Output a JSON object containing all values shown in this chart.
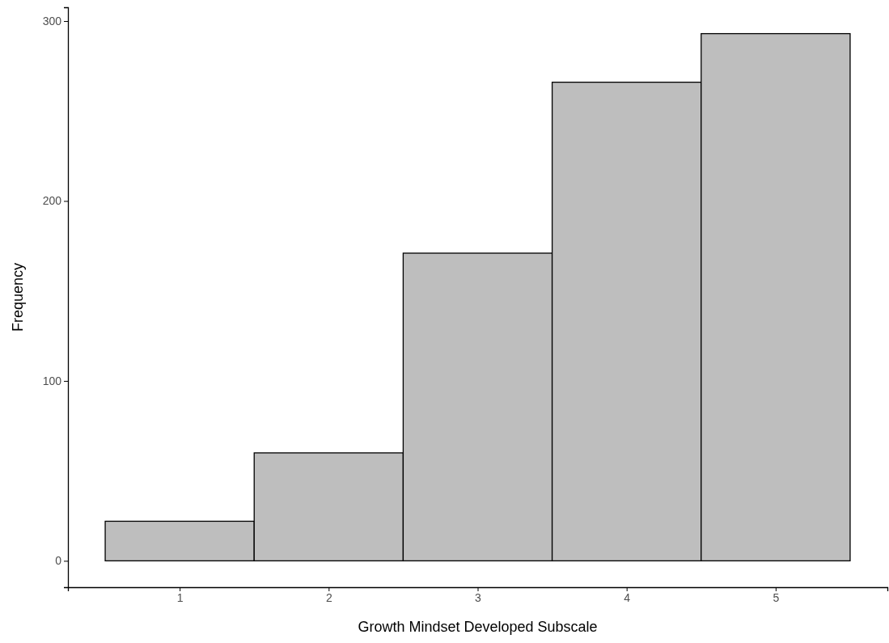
{
  "chart_data": {
    "type": "histogram",
    "xlabel": "Growth Mindset Developed Subscale",
    "ylabel": "Frequency",
    "bins": [
      0.5,
      1.5,
      2.5,
      3.5,
      4.5,
      5.5
    ],
    "values": [
      22,
      60,
      171,
      266,
      293
    ],
    "color": "#bebebe",
    "xlim": [
      0.25,
      5.75
    ],
    "ylim": [
      -14.65,
      307.65
    ],
    "xticks": [
      1,
      2,
      3,
      4,
      5
    ],
    "yticks": [
      0,
      100,
      200,
      300
    ],
    "grid": false
  }
}
